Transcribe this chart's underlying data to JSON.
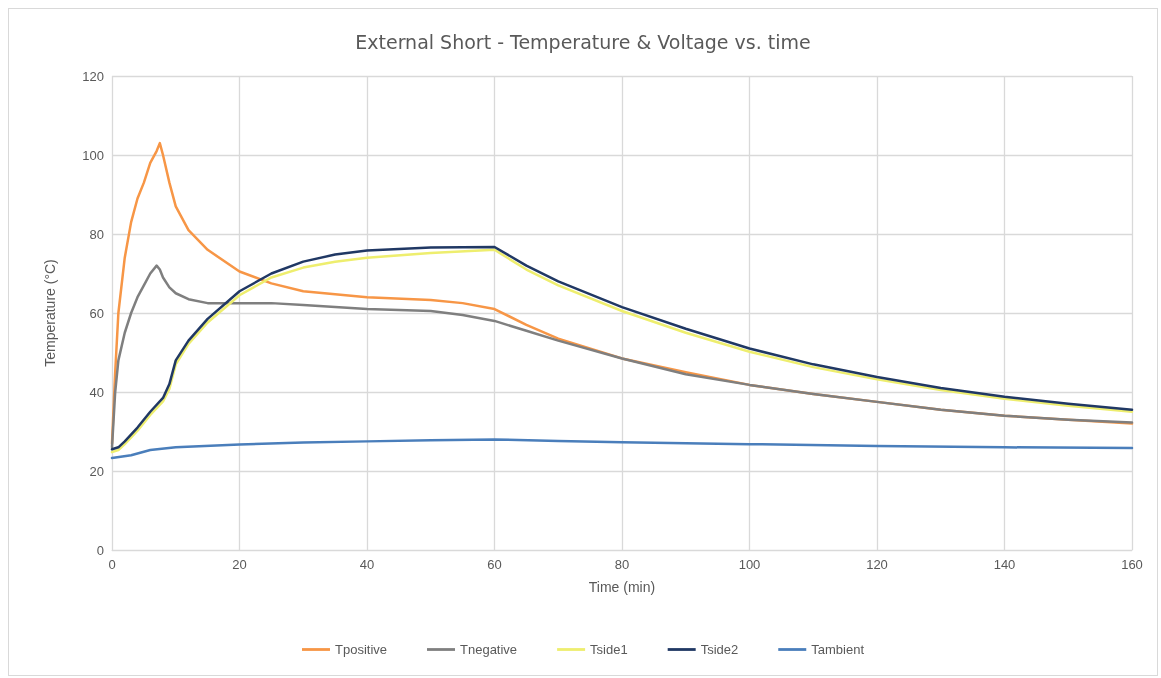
{
  "chart_data": {
    "type": "line",
    "title": "External Short - Temperature & Voltage vs. time",
    "xlabel": "Time (min)",
    "ylabel": "Temperature (°C)",
    "xlim": [
      0,
      160
    ],
    "xticks": [
      0,
      20,
      40,
      60,
      80,
      100,
      120,
      140,
      160
    ],
    "ylim": [
      0,
      120
    ],
    "yticks": [
      0,
      20,
      40,
      60,
      80,
      100,
      120
    ],
    "grid": true,
    "legend": "bottom",
    "marker": "none",
    "line_style": "solid",
    "series": [
      {
        "name": "Tpositive",
        "color": "#f79646",
        "x": [
          0,
          0.5,
          1,
          2,
          3,
          4,
          5,
          6,
          7,
          7.5,
          8,
          9,
          10,
          12,
          15,
          20,
          25,
          30,
          40,
          50,
          55,
          60,
          65,
          70,
          80,
          90,
          100,
          110,
          120,
          130,
          140,
          150,
          160
        ],
        "values": [
          27,
          45,
          60,
          74,
          83,
          89,
          93,
          98,
          101,
          103,
          100,
          93,
          87,
          81,
          76,
          70.5,
          67.5,
          65.5,
          64,
          63.3,
          62.5,
          61,
          57,
          53.5,
          48.5,
          45,
          41.8,
          39.5,
          37.5,
          35.5,
          34,
          33,
          32
        ]
      },
      {
        "name": "Tnegative",
        "color": "#7f7f7f",
        "x": [
          0,
          0.5,
          1,
          2,
          3,
          4,
          5,
          6,
          7,
          7.5,
          8,
          9,
          10,
          12,
          15,
          20,
          25,
          30,
          40,
          50,
          55,
          60,
          65,
          70,
          80,
          90,
          100,
          110,
          120,
          130,
          140,
          150,
          160
        ],
        "values": [
          26,
          40,
          48,
          55,
          60,
          64,
          67,
          70,
          72,
          71,
          69,
          66.5,
          65,
          63.5,
          62.5,
          62.5,
          62.5,
          62,
          61,
          60.5,
          59.5,
          58,
          55.5,
          53,
          48.5,
          44.5,
          41.8,
          39.5,
          37.5,
          35.5,
          34,
          33,
          32.3
        ]
      },
      {
        "name": "Tside1",
        "color": "#eeee6e",
        "x": [
          0,
          1,
          2,
          4,
          6,
          8,
          9,
          10,
          12,
          15,
          20,
          25,
          30,
          35,
          40,
          50,
          60,
          65,
          70,
          80,
          90,
          100,
          110,
          120,
          130,
          140,
          150,
          160
        ],
        "values": [
          24.8,
          25.3,
          26.8,
          30.2,
          34.2,
          37.6,
          40.8,
          47,
          52.2,
          57.6,
          64.5,
          69,
          71.5,
          73,
          74,
          75.2,
          76,
          71,
          67,
          60.5,
          55,
          50.2,
          46.3,
          43.2,
          40.5,
          38.3,
          36.5,
          35
        ]
      },
      {
        "name": "Tside2",
        "color": "#203864",
        "x": [
          0,
          1,
          2,
          4,
          6,
          8,
          9,
          10,
          12,
          15,
          20,
          25,
          30,
          35,
          40,
          50,
          60,
          65,
          70,
          80,
          90,
          100,
          110,
          120,
          130,
          140,
          150,
          160
        ],
        "values": [
          25.5,
          26,
          27.5,
          31,
          35,
          38.5,
          42,
          48,
          53,
          58.5,
          65.5,
          70,
          73,
          74.8,
          75.8,
          76.6,
          76.7,
          72,
          68,
          61.5,
          56,
          51,
          47,
          43.8,
          41,
          38.8,
          37,
          35.5
        ]
      },
      {
        "name": "Tambient",
        "color": "#4a7ebb",
        "x": [
          0,
          3,
          6,
          10,
          20,
          30,
          40,
          50,
          60,
          70,
          80,
          100,
          120,
          140,
          160
        ],
        "values": [
          23.3,
          24,
          25.3,
          26,
          26.7,
          27.2,
          27.5,
          27.8,
          28,
          27.6,
          27.3,
          26.8,
          26.3,
          26,
          25.8
        ]
      }
    ]
  }
}
